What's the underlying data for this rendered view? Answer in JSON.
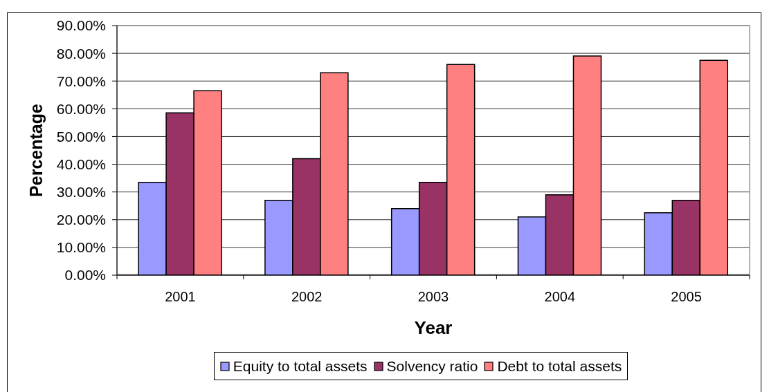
{
  "chart_data": {
    "type": "bar",
    "xlabel": "Year",
    "ylabel": "Percentage",
    "categories": [
      "2001",
      "2002",
      "2003",
      "2004",
      "2005"
    ],
    "series": [
      {
        "name": "Equity to total assets",
        "color": "#9999ff",
        "values": [
          33.5,
          27,
          24,
          21,
          22.5
        ]
      },
      {
        "name": "Solvency ratio",
        "color": "#993366",
        "values": [
          58.5,
          42,
          33.5,
          29,
          27
        ]
      },
      {
        "name": "Debt to total assets",
        "color": "#ff8080",
        "values": [
          66.5,
          73,
          76,
          79,
          77.5
        ]
      }
    ],
    "ylim": [
      0,
      90
    ],
    "yticks": [
      {
        "value": 0,
        "label": "0.00%"
      },
      {
        "value": 10,
        "label": "10.00%"
      },
      {
        "value": 20,
        "label": "20.00%"
      },
      {
        "value": 30,
        "label": "30.00%"
      },
      {
        "value": 40,
        "label": "40.00%"
      },
      {
        "value": 50,
        "label": "50.00%"
      },
      {
        "value": 60,
        "label": "60.00%"
      },
      {
        "value": 70,
        "label": "70.00%"
      },
      {
        "value": 80,
        "label": "80.00%"
      },
      {
        "value": 90,
        "label": "90.00%"
      }
    ],
    "grid": "y",
    "legend": "bottom"
  }
}
